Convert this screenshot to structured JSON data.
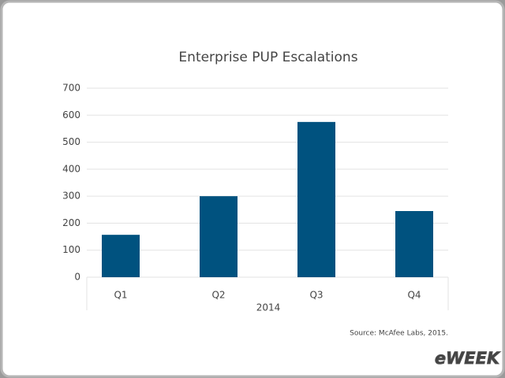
{
  "chart_data": {
    "type": "bar",
    "title": "Enterprise PUP Escalations",
    "categories": [
      "Q1",
      "Q2",
      "Q3",
      "Q4"
    ],
    "values": [
      157,
      300,
      575,
      245
    ],
    "color": "#00527f",
    "xlabel": "2014",
    "ylim": [
      0,
      700
    ],
    "yticks": [
      0,
      100,
      200,
      300,
      400,
      500,
      600,
      700
    ],
    "grid": true,
    "source": "Source: McAfee Labs, 2015.",
    "watermark": "eWEEK"
  }
}
